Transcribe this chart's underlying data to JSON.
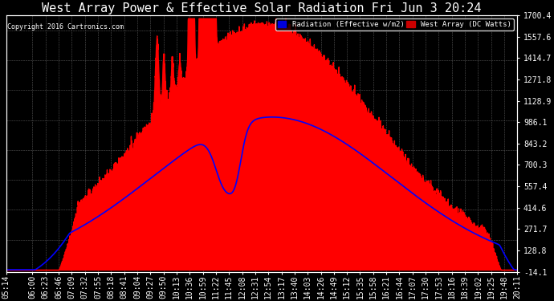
{
  "title": "West Array Power & Effective Solar Radiation Fri Jun 3 20:24",
  "copyright": "Copyright 2016 Cartronics.com",
  "legend_blue": "Radiation (Effective w/m2)",
  "legend_red": "West Array (DC Watts)",
  "ymin": -14.1,
  "ymax": 1700.4,
  "yticks": [
    1700.4,
    1557.6,
    1414.7,
    1271.8,
    1128.9,
    986.1,
    843.2,
    700.3,
    557.4,
    414.6,
    271.7,
    128.8,
    -14.1
  ],
  "bg_color": "#000000",
  "plot_bg": "#000000",
  "title_color": "#ffffff",
  "grid_color": "#555555",
  "red_color": "#ff0000",
  "blue_color": "#0000ff",
  "xtick_labels": [
    "05:14",
    "06:00",
    "06:23",
    "06:46",
    "07:09",
    "07:32",
    "07:55",
    "08:18",
    "08:41",
    "09:04",
    "09:27",
    "09:50",
    "10:13",
    "10:36",
    "10:59",
    "11:22",
    "11:45",
    "12:08",
    "12:31",
    "12:54",
    "13:17",
    "13:40",
    "14:03",
    "14:26",
    "14:49",
    "15:12",
    "15:35",
    "15:58",
    "16:21",
    "16:44",
    "17:07",
    "17:30",
    "17:53",
    "18:16",
    "18:39",
    "19:02",
    "19:25",
    "19:48",
    "20:11"
  ],
  "title_fontsize": 11,
  "tick_fontsize": 7
}
